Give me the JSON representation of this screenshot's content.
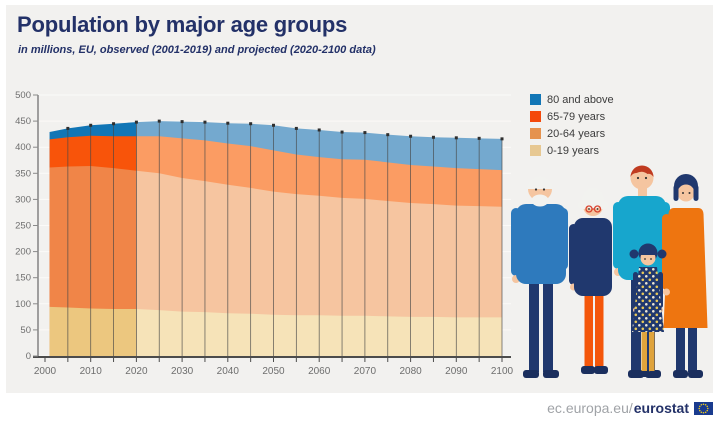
{
  "header": {
    "title": "Population by major age groups",
    "subtitle": "in millions, EU, observed (2001-2019) and projected (2020-2100 data)"
  },
  "legend": {
    "items": [
      {
        "label": "80 and above",
        "color": "#1276b6"
      },
      {
        "label": "65-79 years",
        "color": "#f4490b"
      },
      {
        "label": "20-64 years",
        "color": "#e5924e"
      },
      {
        "label": "0-19 years",
        "color": "#e7c892"
      }
    ]
  },
  "chart_data": {
    "type": "area",
    "stacked": true,
    "title": "Population by major age groups",
    "unit": "millions",
    "x": [
      2001,
      2005,
      2010,
      2015,
      2020,
      2025,
      2030,
      2035,
      2040,
      2045,
      2050,
      2055,
      2060,
      2065,
      2070,
      2075,
      2080,
      2085,
      2090,
      2095,
      2100
    ],
    "series": [
      {
        "name": "0-19 years",
        "values": [
          94,
          93,
          91,
          90,
          90,
          88,
          85,
          84,
          82,
          81,
          79,
          78,
          78,
          77,
          77,
          76,
          75,
          75,
          74,
          74,
          74
        ]
      },
      {
        "name": "20-64 years",
        "values": [
          267,
          270,
          273,
          270,
          265,
          262,
          256,
          251,
          246,
          241,
          236,
          232,
          229,
          226,
          224,
          221,
          218,
          216,
          214,
          213,
          212
        ]
      },
      {
        "name": "65-79 years",
        "values": [
          54,
          56,
          58,
          61,
          66,
          71,
          76,
          78,
          79,
          80,
          79,
          76,
          74,
          74,
          75,
          74,
          73,
          72,
          72,
          71,
          70
        ]
      },
      {
        "name": "80 and above",
        "values": [
          14,
          17,
          20,
          24,
          27,
          29,
          32,
          35,
          39,
          43,
          48,
          50,
          52,
          52,
          52,
          53,
          55,
          56,
          58,
          59,
          60
        ]
      }
    ],
    "observed_until": 2020,
    "observed_colors": [
      "#ecc77f",
      "#f08548",
      "#f8540a",
      "#1276b6"
    ],
    "projected_colors": [
      "#f6e3b8",
      "#f6c5a0",
      "#fb9c63",
      "#74a9cf"
    ],
    "ylim": [
      0,
      500
    ],
    "ytick_step": 50,
    "xlim": [
      2000,
      2100
    ],
    "xticks": [
      2000,
      2010,
      2020,
      2030,
      2040,
      2050,
      2060,
      2070,
      2080,
      2090,
      2100
    ],
    "xminor_step": 5,
    "grid": true,
    "legend_position": "right"
  },
  "footer": {
    "url_prefix": "ec.europa.eu/",
    "url_bold": "eurostat"
  },
  "illustration": {
    "people": [
      "elderly-man",
      "elderly-woman",
      "adult-man",
      "child-girl",
      "adult-woman"
    ]
  }
}
